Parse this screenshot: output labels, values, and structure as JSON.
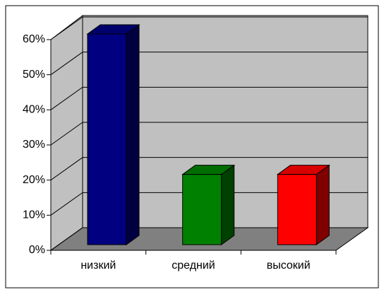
{
  "chart_data": {
    "type": "bar",
    "categories": [
      "низкий",
      "средний",
      "высокий"
    ],
    "values": [
      60,
      20,
      20
    ],
    "colors": [
      "#000080",
      "#008000",
      "#ff0000"
    ],
    "ylim": [
      0,
      60
    ],
    "yticks": [
      {
        "value": 0,
        "label": "0%"
      },
      {
        "value": 10,
        "label": "10%"
      },
      {
        "value": 20,
        "label": "20%"
      },
      {
        "value": 30,
        "label": "30%"
      },
      {
        "value": 40,
        "label": "40%"
      },
      {
        "value": 50,
        "label": "50%"
      },
      {
        "value": 60,
        "label": "60%"
      }
    ],
    "grid": true
  }
}
